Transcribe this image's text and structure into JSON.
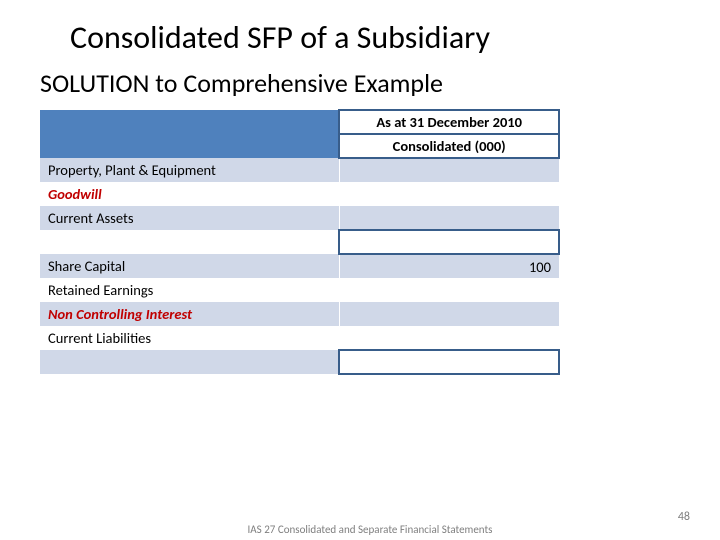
{
  "title": "Consolidated SFP of a Subsidiary",
  "subtitle": "SOLUTION to Comprehensive Example",
  "table": {
    "header1": "As at 31 December 2010",
    "header2": "Consolidated (000)",
    "rows": [
      {
        "label": "Property, Plant & Equipment",
        "value": "",
        "label_cls": "",
        "row_band": "band-light",
        "val_band": "band-light",
        "boxed": false
      },
      {
        "label": "Goodwill",
        "value": "",
        "label_cls": "goodwill",
        "row_band": "band-white",
        "val_band": "band-white",
        "boxed": false
      },
      {
        "label": "Current Assets",
        "value": "",
        "label_cls": "",
        "row_band": "band-light",
        "val_band": "band-light",
        "boxed": false
      },
      {
        "label": "",
        "value": "",
        "label_cls": "",
        "row_band": "band-white",
        "val_band": "",
        "boxed": true
      },
      {
        "label": "Share Capital",
        "value": "100",
        "label_cls": "",
        "row_band": "band-light",
        "val_band": "band-light",
        "boxed": false
      },
      {
        "label": "Retained Earnings",
        "value": "",
        "label_cls": "",
        "row_band": "band-white",
        "val_band": "band-white",
        "boxed": false
      },
      {
        "label": "Non Controlling Interest",
        "value": "",
        "label_cls": "nci",
        "row_band": "band-light",
        "val_band": "band-light",
        "boxed": false
      },
      {
        "label": "Current Liabilities",
        "value": "",
        "label_cls": "",
        "row_band": "band-white",
        "val_band": "band-white",
        "boxed": false
      },
      {
        "label": "",
        "value": "",
        "label_cls": "",
        "row_band": "band-light",
        "val_band": "",
        "boxed": true
      }
    ]
  },
  "footer": "IAS 27 Consolidated and Separate Financial Statements",
  "page_number": "48",
  "colors": {
    "band_dark": "#4f81bd",
    "band_light": "#d0d8e8",
    "accent_border": "#385d8a",
    "emphasis_text": "#c00000",
    "footer_grey": "#7f7f7f"
  }
}
